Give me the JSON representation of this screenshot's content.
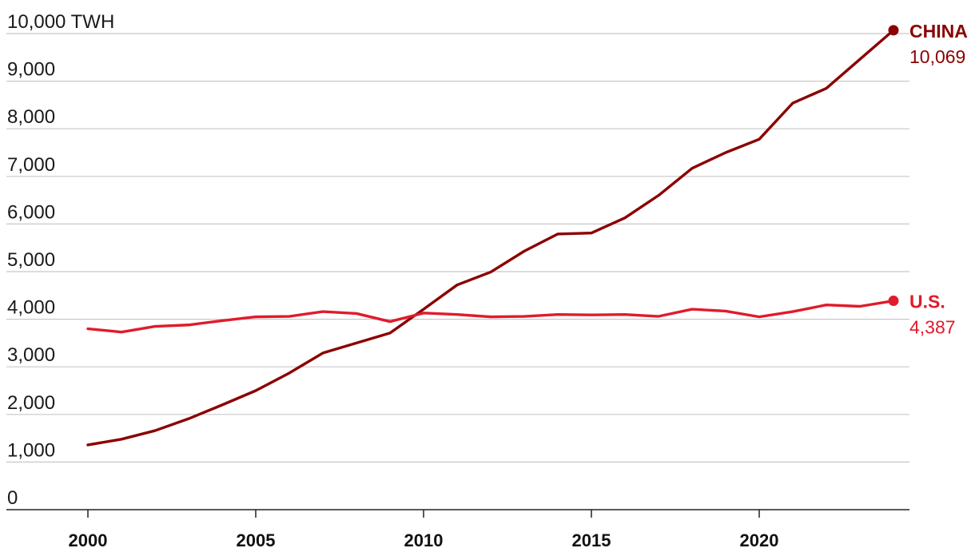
{
  "chart_data": {
    "type": "line",
    "unit_label": "TWH",
    "x": [
      2000,
      2001,
      2002,
      2003,
      2004,
      2005,
      2006,
      2007,
      2008,
      2009,
      2010,
      2011,
      2012,
      2013,
      2014,
      2015,
      2016,
      2017,
      2018,
      2019,
      2020,
      2021,
      2022,
      2023,
      2024
    ],
    "xticks": [
      "2000",
      "2005",
      "2010",
      "2015",
      "2020"
    ],
    "xtick_values": [
      2000,
      2005,
      2010,
      2015,
      2020
    ],
    "yticks": [
      "0",
      "1,000",
      "2,000",
      "3,000",
      "4,000",
      "5,000",
      "6,000",
      "7,000",
      "8,000",
      "9,000",
      "10,000"
    ],
    "ytick_values": [
      0,
      1000,
      2000,
      3000,
      4000,
      5000,
      6000,
      7000,
      8000,
      9000,
      10000
    ],
    "ylim": [
      0,
      10000
    ],
    "xlim": [
      2000,
      2024
    ],
    "grid": true,
    "series": [
      {
        "name": "CHINA",
        "color": "#8b0000",
        "end_label": "10,069",
        "values": [
          1360,
          1480,
          1660,
          1910,
          2200,
          2500,
          2870,
          3290,
          3500,
          3710,
          4210,
          4720,
          4990,
          5430,
          5790,
          5810,
          6130,
          6600,
          7170,
          7500,
          7780,
          8540,
          8850,
          9460,
          10069
        ]
      },
      {
        "name": "U.S.",
        "color": "#e01b2b",
        "end_label": "4,387",
        "values": [
          3800,
          3730,
          3850,
          3880,
          3970,
          4050,
          4060,
          4160,
          4120,
          3950,
          4130,
          4100,
          4050,
          4060,
          4100,
          4090,
          4100,
          4060,
          4210,
          4170,
          4050,
          4160,
          4300,
          4270,
          4387
        ]
      }
    ]
  }
}
